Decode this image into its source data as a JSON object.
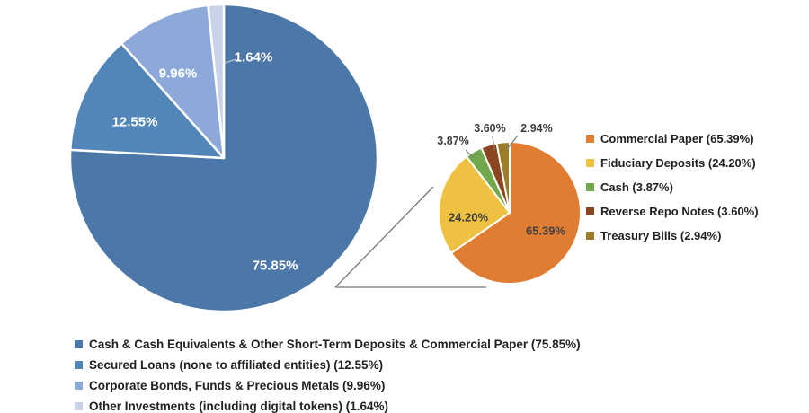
{
  "chart_data": {
    "type": "pie",
    "variant": "pie-of-pie",
    "background": "#ffffff",
    "grid": false,
    "main_pie": {
      "legend_position": "bottom-left",
      "slices": [
        {
          "name": "Cash & Cash Equivalents & Other Short-Term Deposits & Commercial Paper",
          "value": 75.85,
          "percent_label": "75.85%",
          "legend_label": "Cash & Cash Equivalents & Other Short-Term Deposits & Commercial Paper (75.85%)",
          "color": "#4B77A9"
        },
        {
          "name": "Secured Loans (none to affiliated entities)",
          "value": 12.55,
          "percent_label": "12.55%",
          "legend_label": "Secured Loans (none to affiliated entities) (12.55%)",
          "color": "#5285B8"
        },
        {
          "name": "Corporate Bonds, Funds & Precious Metals",
          "value": 9.96,
          "percent_label": "9.96%",
          "legend_label": "Corporate Bonds, Funds & Precious Metals (9.96%)",
          "color": "#8DA9DA"
        },
        {
          "name": "Other Investments (including digital tokens)",
          "value": 1.64,
          "percent_label": "1.64%",
          "legend_label": "Other Investments (including digital tokens) (1.64%)",
          "color": "#C9D2E8"
        }
      ]
    },
    "breakout_pie": {
      "breakout_of_main_slice_index": 0,
      "legend_position": "right",
      "slices": [
        {
          "name": "Commercial Paper",
          "value": 65.39,
          "percent_label": "65.39%",
          "legend_label": "Commercial Paper (65.39%)",
          "color": "#E07D33"
        },
        {
          "name": "Fiduciary Deposits",
          "value": 24.2,
          "percent_label": "24.20%",
          "legend_label": "Fiduciary Deposits (24.20%)",
          "color": "#EFC143"
        },
        {
          "name": "Cash",
          "value": 3.87,
          "percent_label": "3.87%",
          "legend_label": "Cash (3.87%)",
          "color": "#72A84D"
        },
        {
          "name": "Reverse Repo Notes",
          "value": 3.6,
          "percent_label": "3.60%",
          "legend_label": "Reverse Repo Notes (3.60%)",
          "color": "#8B4521"
        },
        {
          "name": "Treasury Bills",
          "value": 2.94,
          "percent_label": "2.94%",
          "legend_label": "Treasury Bills (2.94%)",
          "color": "#9E7D2A"
        }
      ]
    }
  }
}
